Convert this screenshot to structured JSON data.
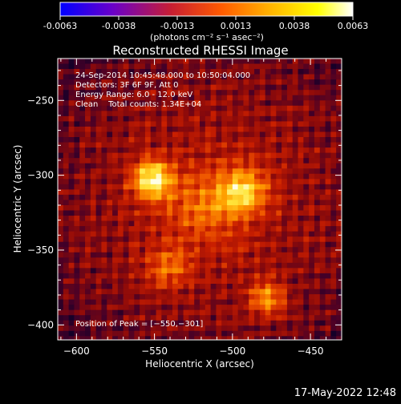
{
  "colorbar": {
    "ticks": [
      "-0.0063",
      "-0.0038",
      "-0.0013",
      "0.0013",
      "0.0038",
      "0.0063"
    ],
    "units": "(photons cm⁻² s⁻¹ asec⁻²)",
    "stops": [
      "#0000ff",
      "#6a00c8",
      "#c81e32",
      "#ff5a00",
      "#ffb400",
      "#ffff00",
      "#ffffff"
    ]
  },
  "chart_data": {
    "type": "heatmap",
    "title": "Reconstructed RHESSI Image",
    "xlabel": "Heliocentric X (arcsec)",
    "ylabel": "Heliocentric Y (arcsec)",
    "xlim": [
      -612,
      -430
    ],
    "ylim": [
      -410,
      -222
    ],
    "x_ticks": [
      -600,
      -550,
      -500,
      -450
    ],
    "x_tick_labels": [
      "−600",
      "−550",
      "−500",
      "−450"
    ],
    "y_ticks": [
      -250,
      -300,
      -350,
      -400
    ],
    "y_tick_labels": [
      "−250",
      "−300",
      "−350",
      "−400"
    ],
    "peak": [
      -550,
      -301
    ],
    "sources": [
      {
        "x": -553,
        "y": -301,
        "amp": 1.0,
        "sigma": 9
      },
      {
        "x": -495,
        "y": -309,
        "amp": 0.75,
        "sigma": 11
      },
      {
        "x": -480,
        "y": -381,
        "amp": 0.65,
        "sigma": 8
      },
      {
        "x": -543,
        "y": -360,
        "amp": 0.45,
        "sigma": 10
      },
      {
        "x": -520,
        "y": -320,
        "amp": 0.4,
        "sigma": 18
      }
    ],
    "annotations": [
      "24-Sep-2014 10:45:48.000 to 10:50:04.000",
      "Detectors: 3F 6F 9F, Att 0",
      "Energy Range: 6.0 - 12.0 keV",
      "Clean    Total counts: 1.34E+04"
    ],
    "peak_label": "Position of Peak = [−550,−301]"
  },
  "footer": {
    "timestamp": "17-May-2022 12:48"
  }
}
